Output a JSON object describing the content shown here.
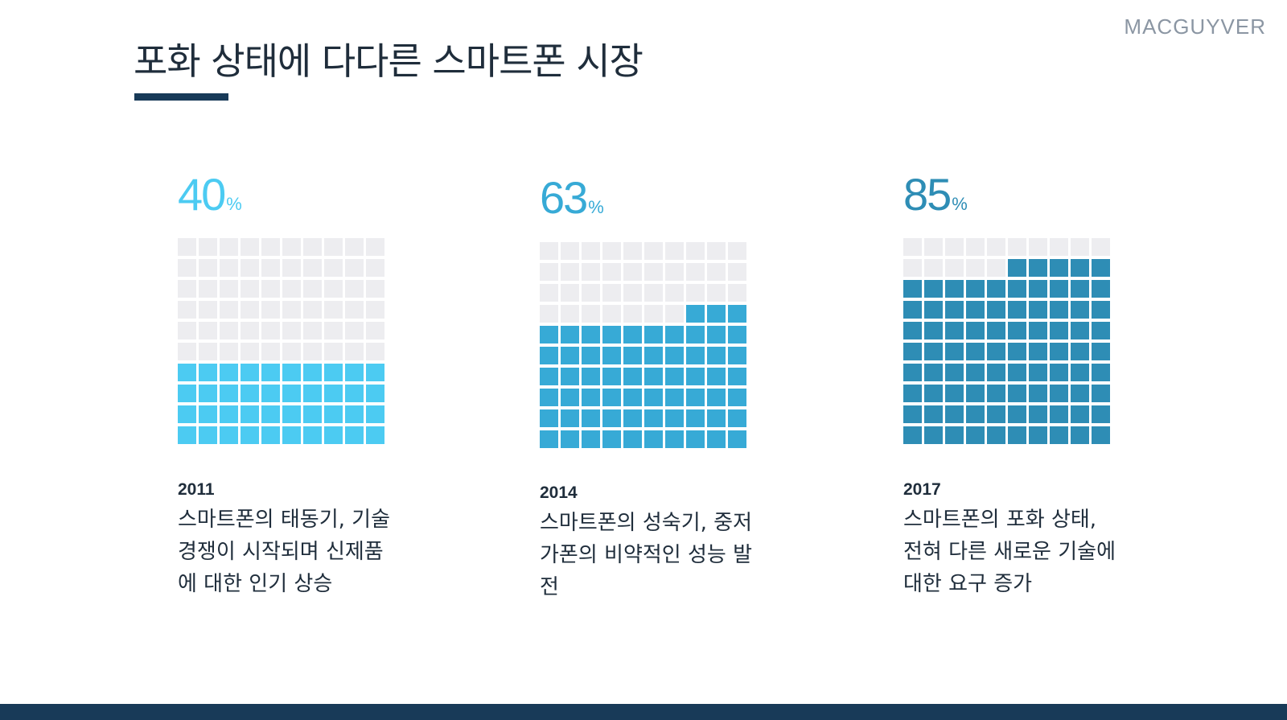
{
  "brand": "MACGUYVER",
  "title": "포화 상태에 다다른 스마트폰 시장",
  "colors": {
    "empty_cell": "#ededf0",
    "title_underline": "#183a58",
    "footer_bar": "#183a58",
    "text_dark": "#1f2d3b",
    "brand_gray": "#8b96a3"
  },
  "chart_data": [
    {
      "type": "waffle",
      "value": 40,
      "percent_label": "40",
      "percent_symbol": "%",
      "total_cells": 100,
      "color": "#4ccbf2",
      "year": "2011",
      "description": "스마트폰의 태동기, 기술 경쟁이 시작되며 신제품에 대한 인기 상승"
    },
    {
      "type": "waffle",
      "value": 63,
      "percent_label": "63",
      "percent_symbol": "%",
      "total_cells": 100,
      "color": "#37aad6",
      "year": "2014",
      "description": "스마트폰의 성숙기, 중저가폰의 비약적인 성능 발전"
    },
    {
      "type": "waffle",
      "value": 85,
      "percent_label": "85",
      "percent_symbol": "%",
      "total_cells": 100,
      "color": "#2e8db5",
      "year": "2017",
      "description": "스마트폰의 포화 상태, 전혀 다른 새로운 기술에 대한 요구 증가"
    }
  ]
}
